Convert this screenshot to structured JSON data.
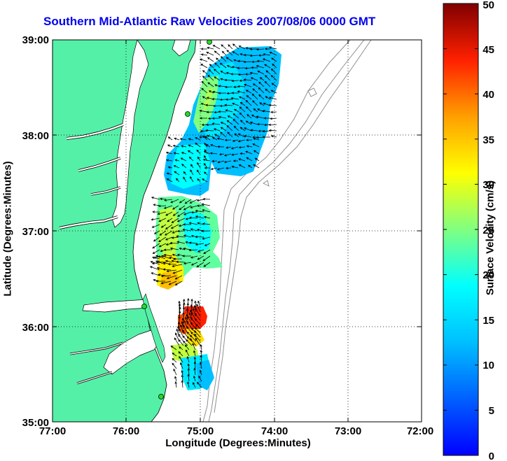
{
  "title": "Southern Mid-Atlantic Raw Velocities 2007/08/06 0000 GMT",
  "axes": {
    "xlabel": "Longitude (Degrees:Minutes)",
    "ylabel": "Latitude (Degrees:Minutes)",
    "x_ticks": [
      "77:00",
      "76:00",
      "75:00",
      "74:00",
      "73:00",
      "72:00"
    ],
    "y_ticks": [
      "39:00",
      "38:00",
      "37:00",
      "36:00",
      "35:00"
    ],
    "xlim": [
      -77,
      -72
    ],
    "ylim": [
      35,
      39
    ],
    "grid": "dotted"
  },
  "colorbar": {
    "label": "Surface Velocity (cm/s)",
    "ticks": [
      "0",
      "5",
      "10",
      "15",
      "20",
      "25",
      "30",
      "35",
      "40",
      "45",
      "50"
    ],
    "range": [
      0,
      50
    ]
  },
  "colors": {
    "land": "#55f0a8",
    "title": "#0000ee",
    "bathymetry": "#909090",
    "station": "#22dd22"
  },
  "features": [
    "land-mass",
    "coastline",
    "bathymetry-contours",
    "velocity-field",
    "velocity-arrows",
    "hf-radar-stations"
  ]
}
